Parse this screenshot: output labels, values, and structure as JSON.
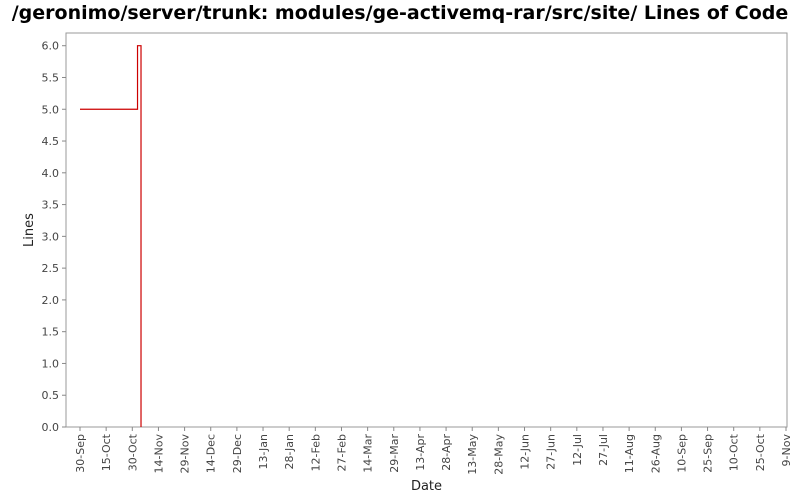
{
  "chart_data": {
    "type": "line",
    "title": "/geronimo/server/trunk: modules/ge-activemq-rar/src/site/ Lines of Code",
    "xlabel": "Date",
    "ylabel": "Lines",
    "ylim": [
      0,
      6.2
    ],
    "yticks": [
      "0.0",
      "0.5",
      "1.0",
      "1.5",
      "2.0",
      "2.5",
      "3.0",
      "3.5",
      "4.0",
      "4.5",
      "5.0",
      "5.5",
      "6.0"
    ],
    "xticks": [
      "30-Sep",
      "15-Oct",
      "30-Oct",
      "14-Nov",
      "29-Nov",
      "14-Dec",
      "29-Dec",
      "13-Jan",
      "28-Jan",
      "12-Feb",
      "27-Feb",
      "14-Mar",
      "29-Mar",
      "13-Apr",
      "28-Apr",
      "13-May",
      "28-May",
      "12-Jun",
      "27-Jun",
      "12-Jul",
      "27-Jul",
      "11-Aug",
      "26-Aug",
      "10-Sep",
      "25-Sep",
      "10-Oct",
      "25-Oct",
      "9-Nov"
    ],
    "grid": false,
    "series": [
      {
        "color": "#cc0000",
        "step": true,
        "points": [
          {
            "x": "30-Sep",
            "y": 5.0
          },
          {
            "x": "2-Nov",
            "y": 6.0
          },
          {
            "x": "4-Nov",
            "y": 0.0
          }
        ]
      }
    ]
  }
}
